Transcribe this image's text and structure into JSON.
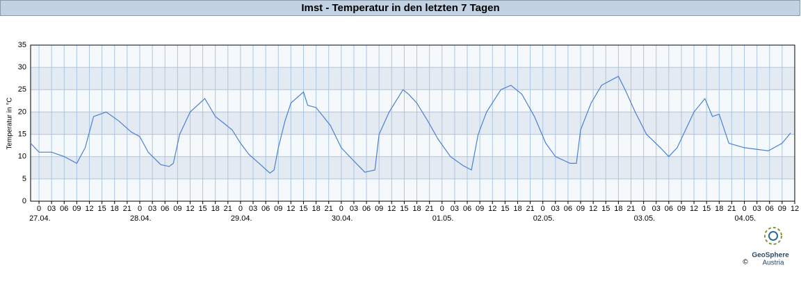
{
  "chart_data": {
    "type": "line",
    "title": "Imst - Temperatur in den letzten 7 Tagen",
    "ylabel": "Temperatur in °C",
    "color": "#4a7fd4",
    "grid": true,
    "bands": true,
    "xlim": [
      -2,
      180
    ],
    "ylim": [
      0,
      35
    ],
    "yticks": [
      0,
      5,
      10,
      15,
      20,
      25,
      30,
      35
    ],
    "xticks": [
      {
        "value": 0,
        "label": "0"
      },
      {
        "value": 3,
        "label": "03"
      },
      {
        "value": 6,
        "label": "06"
      },
      {
        "value": 9,
        "label": "09"
      },
      {
        "value": 12,
        "label": "12"
      },
      {
        "value": 15,
        "label": "15"
      },
      {
        "value": 18,
        "label": "18"
      },
      {
        "value": 21,
        "label": "21"
      },
      {
        "value": 24,
        "label": "0"
      },
      {
        "value": 27,
        "label": "03"
      },
      {
        "value": 30,
        "label": "06"
      },
      {
        "value": 33,
        "label": "09"
      },
      {
        "value": 36,
        "label": "12"
      },
      {
        "value": 39,
        "label": "15"
      },
      {
        "value": 42,
        "label": "18"
      },
      {
        "value": 45,
        "label": "21"
      },
      {
        "value": 48,
        "label": "0"
      },
      {
        "value": 51,
        "label": "03"
      },
      {
        "value": 54,
        "label": "06"
      },
      {
        "value": 57,
        "label": "09"
      },
      {
        "value": 60,
        "label": "12"
      },
      {
        "value": 63,
        "label": "15"
      },
      {
        "value": 66,
        "label": "18"
      },
      {
        "value": 69,
        "label": "21"
      },
      {
        "value": 72,
        "label": "0"
      },
      {
        "value": 75,
        "label": "03"
      },
      {
        "value": 78,
        "label": "06"
      },
      {
        "value": 81,
        "label": "09"
      },
      {
        "value": 84,
        "label": "12"
      },
      {
        "value": 87,
        "label": "15"
      },
      {
        "value": 90,
        "label": "18"
      },
      {
        "value": 93,
        "label": "21"
      },
      {
        "value": 96,
        "label": "0"
      },
      {
        "value": 99,
        "label": "03"
      },
      {
        "value": 102,
        "label": "06"
      },
      {
        "value": 105,
        "label": "09"
      },
      {
        "value": 108,
        "label": "12"
      },
      {
        "value": 111,
        "label": "15"
      },
      {
        "value": 114,
        "label": "18"
      },
      {
        "value": 117,
        "label": "21"
      },
      {
        "value": 120,
        "label": "0"
      },
      {
        "value": 123,
        "label": "03"
      },
      {
        "value": 126,
        "label": "06"
      },
      {
        "value": 129,
        "label": "09"
      },
      {
        "value": 132,
        "label": "12"
      },
      {
        "value": 135,
        "label": "15"
      },
      {
        "value": 138,
        "label": "18"
      },
      {
        "value": 141,
        "label": "21"
      },
      {
        "value": 144,
        "label": "0"
      },
      {
        "value": 147,
        "label": "03"
      },
      {
        "value": 150,
        "label": "06"
      },
      {
        "value": 153,
        "label": "09"
      },
      {
        "value": 156,
        "label": "12"
      },
      {
        "value": 159,
        "label": "15"
      },
      {
        "value": 162,
        "label": "18"
      },
      {
        "value": 165,
        "label": "21"
      },
      {
        "value": 168,
        "label": "0"
      },
      {
        "value": 171,
        "label": "03"
      },
      {
        "value": 174,
        "label": "06"
      },
      {
        "value": 177,
        "label": "09"
      },
      {
        "value": 180,
        "label": "12"
      }
    ],
    "date_labels": [
      {
        "value": 0,
        "label": "27.04."
      },
      {
        "value": 24,
        "label": "28.04."
      },
      {
        "value": 48,
        "label": "29.04."
      },
      {
        "value": 72,
        "label": "30.04."
      },
      {
        "value": 96,
        "label": "01.05."
      },
      {
        "value": 120,
        "label": "02.05."
      },
      {
        "value": 144,
        "label": "03.05."
      },
      {
        "value": 168,
        "label": "04.05."
      }
    ],
    "x": [
      -2,
      0,
      3,
      6,
      7,
      9,
      11,
      13,
      16,
      19,
      22,
      24,
      26,
      29,
      31,
      32,
      33.5,
      36,
      39.5,
      42,
      44,
      46,
      48,
      50,
      53,
      55,
      56,
      57,
      58.6,
      60,
      63,
      64,
      66,
      69.4,
      72,
      75,
      77.6,
      80,
      81,
      83.4,
      86.7,
      88,
      90,
      92.6,
      95,
      98,
      101,
      103,
      104.6,
      106.6,
      110,
      112.4,
      115,
      118,
      120.7,
      123,
      126.5,
      128,
      129,
      131.5,
      134,
      137,
      138,
      139.6,
      142,
      144.7,
      148,
      150,
      152,
      154,
      156,
      158.6,
      160.4,
      162,
      164.3,
      168,
      173.7,
      177,
      179
    ],
    "values": [
      13,
      11,
      11,
      10,
      9.5,
      8.5,
      12,
      19,
      20,
      18,
      15.5,
      14.5,
      11,
      8.2,
      7.8,
      8.5,
      15,
      20,
      23,
      19,
      17.5,
      16,
      13,
      10.5,
      8,
      6.3,
      7,
      12,
      18,
      22,
      24.5,
      21.5,
      21,
      17,
      12,
      9,
      6.5,
      7,
      15,
      20,
      25,
      24,
      22,
      18,
      14,
      10,
      8,
      7,
      15,
      20,
      25,
      26,
      24,
      19,
      13,
      10,
      8.5,
      8.5,
      16,
      22,
      26,
      27.5,
      28,
      25,
      20,
      15,
      12,
      10,
      12,
      16,
      20,
      23,
      19,
      19.5,
      13,
      12,
      11.3,
      13,
      15.3
    ]
  },
  "logo": {
    "name": "GeoSphere",
    "sub": "Austria",
    "copyright": "©"
  }
}
